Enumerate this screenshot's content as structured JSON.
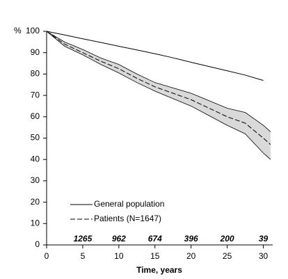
{
  "chart_data": {
    "type": "line",
    "y_unit_label": "%",
    "x_label": "Time, years",
    "x": [
      0,
      2.5,
      5,
      7.5,
      10,
      12.5,
      15,
      17.5,
      20,
      22.5,
      25,
      27.5,
      30,
      31
    ],
    "series": [
      {
        "name": "General population",
        "color": "#000000",
        "dash": "solid",
        "values": [
          100,
          98.3,
          96.5,
          94.8,
          93,
          91.3,
          89.5,
          87.6,
          85.5,
          83.5,
          81.5,
          79.5,
          77,
          null
        ]
      },
      {
        "name": "Patients (N=1647)",
        "color": "#000000",
        "dash": "dashed",
        "band_color": "#d9d9d9",
        "values": [
          100,
          94,
          90,
          86,
          82.5,
          78,
          74,
          71,
          68,
          64,
          60,
          57,
          50,
          47
        ],
        "lower": [
          100,
          93,
          89,
          84.5,
          80.5,
          76,
          72,
          68.5,
          65,
          60.5,
          56,
          52,
          43,
          40
        ],
        "upper": [
          100,
          95,
          91.5,
          87.5,
          84.5,
          80,
          76,
          73.5,
          71,
          67.5,
          64,
          62,
          56,
          53
        ]
      }
    ],
    "at_risk": {
      "x": [
        5,
        10,
        15,
        20,
        25,
        30
      ],
      "labels": [
        "1265",
        "962",
        "674",
        "396",
        "200",
        "39"
      ]
    },
    "xlim": [
      0,
      31.3
    ],
    "xticks": [
      0,
      5,
      10,
      15,
      20,
      25,
      30
    ],
    "ylim": [
      0,
      100
    ],
    "yticks": [
      0,
      10,
      20,
      30,
      40,
      50,
      60,
      70,
      80,
      90,
      100
    ],
    "grid": false
  }
}
